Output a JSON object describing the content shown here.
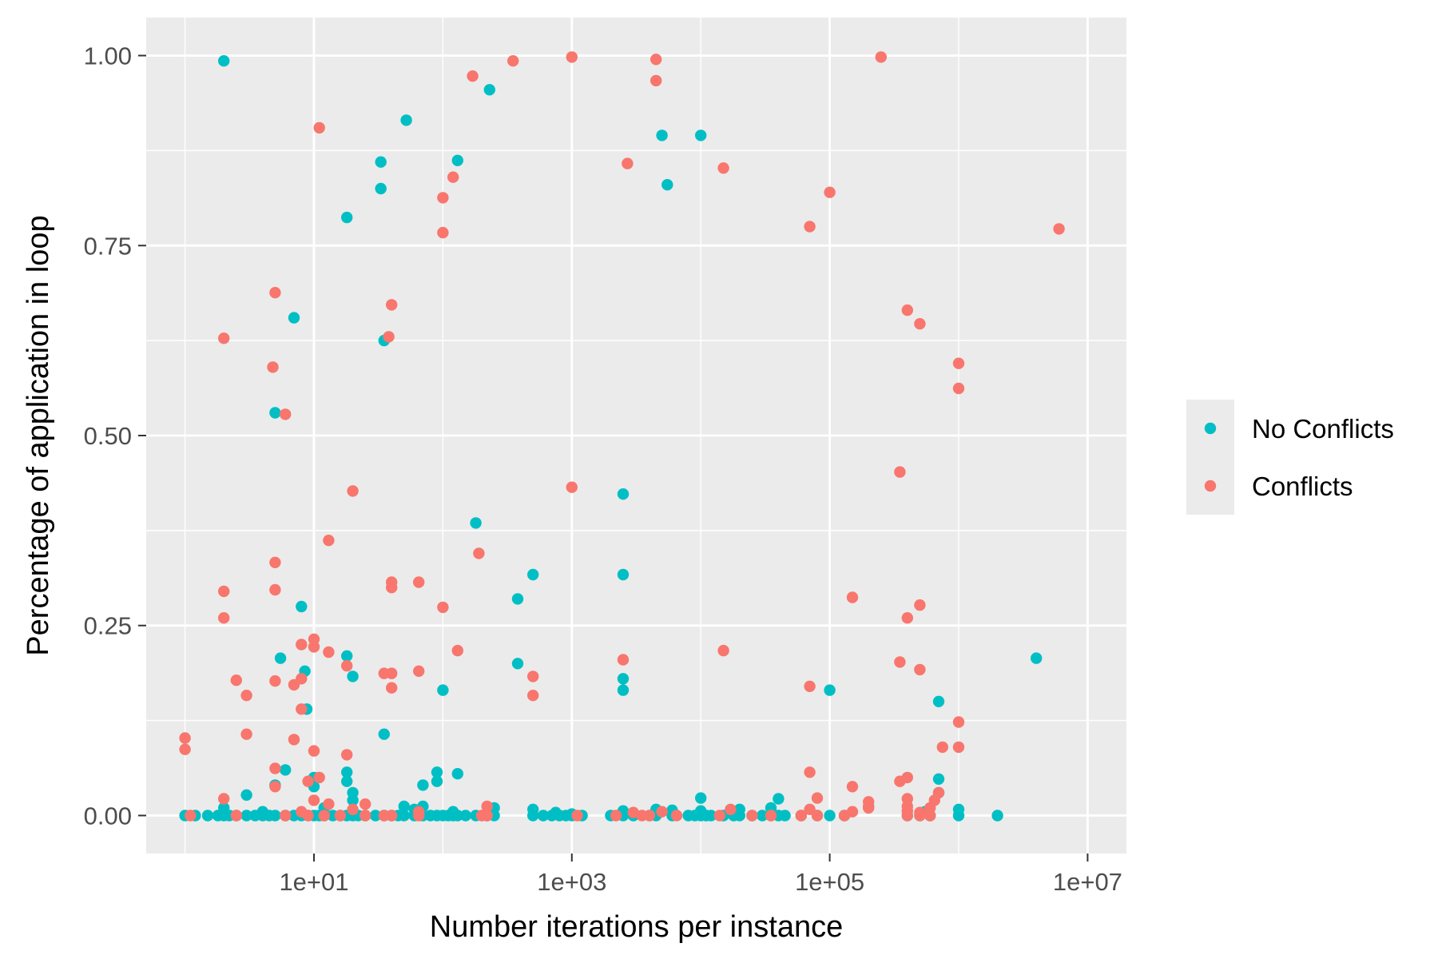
{
  "chart_data": {
    "type": "scatter",
    "title": "",
    "xlabel": "Number iterations per instance",
    "ylabel": "Percentage of application in loop",
    "x_scale": "log10",
    "xlim": [
      0.5,
      20000000
    ],
    "ylim": [
      -0.05,
      1.05
    ],
    "x_ticks": [
      10,
      1000,
      100000,
      10000000
    ],
    "x_tick_labels": [
      "1e+01",
      "1e+03",
      "1e+05",
      "1e+07"
    ],
    "y_ticks": [
      0,
      0.25,
      0.5,
      0.75,
      1.0
    ],
    "y_tick_labels": [
      "0.00",
      "0.25",
      "0.50",
      "0.75",
      "1.00"
    ],
    "grid": true,
    "legend_position": "right",
    "series": [
      {
        "name": "No Conflicts",
        "color": "#00bfc4",
        "points": [
          [
            2,
            0.993
          ],
          [
            5,
            0.53
          ],
          [
            7,
            0.655
          ],
          [
            8,
            0.275
          ],
          [
            18,
            0.787
          ],
          [
            33,
            0.86
          ],
          [
            33,
            0.825
          ],
          [
            35,
            0.625
          ],
          [
            52,
            0.915
          ],
          [
            130,
            0.862
          ],
          [
            230,
            0.955
          ],
          [
            5000,
            0.895
          ],
          [
            5500,
            0.83
          ],
          [
            10000,
            0.895
          ],
          [
            5.5,
            0.207
          ],
          [
            8.5,
            0.19
          ],
          [
            8.8,
            0.14
          ],
          [
            18,
            0.21
          ],
          [
            20,
            0.183
          ],
          [
            35,
            0.107
          ],
          [
            2500,
            0.423
          ],
          [
            2500,
            0.317
          ],
          [
            180,
            0.385
          ],
          [
            380,
            0.285
          ],
          [
            500,
            0.317
          ],
          [
            380,
            0.2
          ],
          [
            2500,
            0.18
          ],
          [
            2500,
            0.165
          ],
          [
            100,
            0.165
          ],
          [
            100000,
            0.165
          ],
          [
            700000,
            0.15
          ],
          [
            4000000,
            0.207
          ],
          [
            5,
            0.04
          ],
          [
            6,
            0.06
          ],
          [
            10,
            0.05
          ],
          [
            10,
            0.038
          ],
          [
            18,
            0.057
          ],
          [
            18,
            0.045
          ],
          [
            20,
            0.03
          ],
          [
            3,
            0.027
          ],
          [
            70,
            0.04
          ],
          [
            90,
            0.057
          ],
          [
            90,
            0.045
          ],
          [
            130,
            0.055
          ],
          [
            700000,
            0.048
          ],
          [
            700000,
            0.03
          ],
          [
            10000,
            0.023
          ],
          [
            40000,
            0.022
          ],
          [
            1,
            0
          ],
          [
            1.2,
            0
          ],
          [
            1.5,
            0
          ],
          [
            1.8,
            0
          ],
          [
            2,
            0
          ],
          [
            2.2,
            0
          ],
          [
            2.5,
            0
          ],
          [
            3,
            0
          ],
          [
            3.5,
            0
          ],
          [
            4,
            0
          ],
          [
            4.5,
            0
          ],
          [
            5,
            0
          ],
          [
            6,
            0
          ],
          [
            7,
            0
          ],
          [
            8,
            0
          ],
          [
            9,
            0
          ],
          [
            10,
            0
          ],
          [
            11,
            0
          ],
          [
            12,
            0
          ],
          [
            14,
            0
          ],
          [
            16,
            0
          ],
          [
            18,
            0
          ],
          [
            20,
            0
          ],
          [
            22,
            0
          ],
          [
            25,
            0
          ],
          [
            30,
            0
          ],
          [
            35,
            0
          ],
          [
            40,
            0
          ],
          [
            45,
            0
          ],
          [
            50,
            0
          ],
          [
            60,
            0
          ],
          [
            70,
            0
          ],
          [
            80,
            0
          ],
          [
            90,
            0
          ],
          [
            100,
            0
          ],
          [
            110,
            0
          ],
          [
            120,
            0
          ],
          [
            130,
            0
          ],
          [
            150,
            0
          ],
          [
            180,
            0
          ],
          [
            220,
            0
          ],
          [
            250,
            0
          ],
          [
            500,
            0
          ],
          [
            600,
            0
          ],
          [
            700,
            0
          ],
          [
            800,
            0
          ],
          [
            900,
            0
          ],
          [
            1000,
            0
          ],
          [
            1200,
            0
          ],
          [
            2000,
            0
          ],
          [
            2500,
            0
          ],
          [
            3000,
            0
          ],
          [
            4000,
            0
          ],
          [
            4500,
            0
          ],
          [
            6000,
            0
          ],
          [
            8000,
            0
          ],
          [
            9000,
            0
          ],
          [
            10000,
            0
          ],
          [
            11000,
            0
          ],
          [
            12000,
            0
          ],
          [
            15000,
            0
          ],
          [
            18000,
            0
          ],
          [
            20000,
            0
          ],
          [
            25000,
            0
          ],
          [
            30000,
            0
          ],
          [
            35000,
            0
          ],
          [
            40000,
            0
          ],
          [
            45000,
            0
          ],
          [
            60000,
            0
          ],
          [
            80000,
            0
          ],
          [
            100000,
            0
          ],
          [
            130000,
            0
          ],
          [
            400000,
            0
          ],
          [
            500000,
            0
          ],
          [
            600000,
            0
          ],
          [
            1000000,
            0
          ],
          [
            2000000,
            0
          ],
          [
            2,
            0.01
          ],
          [
            4,
            0.005
          ],
          [
            12,
            0.01
          ],
          [
            20,
            0.02
          ],
          [
            50,
            0.012
          ],
          [
            60,
            0.008
          ],
          [
            70,
            0.012
          ],
          [
            120,
            0.005
          ],
          [
            250,
            0.01
          ],
          [
            500,
            0.008
          ],
          [
            750,
            0.004
          ],
          [
            1000,
            0.002
          ],
          [
            2500,
            0.006
          ],
          [
            4500,
            0.008
          ],
          [
            6000,
            0.007
          ],
          [
            10000,
            0.006
          ],
          [
            20000,
            0.008
          ],
          [
            35000,
            0.01
          ],
          [
            1000000,
            0.008
          ],
          [
            550000,
            0.005
          ]
        ]
      },
      {
        "name": "Conflicts",
        "color": "#f8766d",
        "points": [
          [
            170,
            0.973
          ],
          [
            350,
            0.993
          ],
          [
            1000,
            0.998
          ],
          [
            4500,
            0.995
          ],
          [
            4500,
            0.967
          ],
          [
            250000,
            0.998
          ],
          [
            11,
            0.905
          ],
          [
            100,
            0.813
          ],
          [
            120,
            0.84
          ],
          [
            100,
            0.767
          ],
          [
            2700,
            0.858
          ],
          [
            15000,
            0.852
          ],
          [
            100000,
            0.82
          ],
          [
            70000,
            0.775
          ],
          [
            6000000,
            0.772
          ],
          [
            2,
            0.628
          ],
          [
            5,
            0.688
          ],
          [
            4.8,
            0.59
          ],
          [
            40,
            0.672
          ],
          [
            38,
            0.63
          ],
          [
            6,
            0.528
          ],
          [
            400000,
            0.665
          ],
          [
            500000,
            0.647
          ],
          [
            1000000,
            0.595
          ],
          [
            1000000,
            0.562
          ],
          [
            350000,
            0.452
          ],
          [
            20,
            0.427
          ],
          [
            1000,
            0.432
          ],
          [
            13,
            0.362
          ],
          [
            190,
            0.345
          ],
          [
            5,
            0.333
          ],
          [
            5,
            0.297
          ],
          [
            2,
            0.295
          ],
          [
            2,
            0.26
          ],
          [
            40,
            0.307
          ],
          [
            40,
            0.3
          ],
          [
            65,
            0.307
          ],
          [
            100,
            0.274
          ],
          [
            150000,
            0.287
          ],
          [
            500000,
            0.277
          ],
          [
            400000,
            0.26
          ],
          [
            10,
            0.232
          ],
          [
            10,
            0.222
          ],
          [
            8,
            0.225
          ],
          [
            13,
            0.215
          ],
          [
            130,
            0.217
          ],
          [
            15000,
            0.217
          ],
          [
            2500,
            0.205
          ],
          [
            18,
            0.197
          ],
          [
            35,
            0.187
          ],
          [
            40,
            0.187
          ],
          [
            65,
            0.19
          ],
          [
            500,
            0.183
          ],
          [
            350000,
            0.202
          ],
          [
            500000,
            0.192
          ],
          [
            2.5,
            0.178
          ],
          [
            3,
            0.158
          ],
          [
            5,
            0.177
          ],
          [
            7,
            0.172
          ],
          [
            8,
            0.18
          ],
          [
            40,
            0.168
          ],
          [
            500,
            0.158
          ],
          [
            70000,
            0.17
          ],
          [
            8,
            0.14
          ],
          [
            1,
            0.102
          ],
          [
            1,
            0.087
          ],
          [
            3,
            0.107
          ],
          [
            7,
            0.1
          ],
          [
            10,
            0.085
          ],
          [
            18,
            0.08
          ],
          [
            1000000,
            0.123
          ],
          [
            1000000,
            0.09
          ],
          [
            750000,
            0.09
          ],
          [
            5,
            0.062
          ],
          [
            5,
            0.038
          ],
          [
            9,
            0.045
          ],
          [
            11,
            0.05
          ],
          [
            10,
            0.02
          ],
          [
            13,
            0.015
          ],
          [
            2,
            0.022
          ],
          [
            25,
            0.015
          ],
          [
            70000,
            0.057
          ],
          [
            80000,
            0.023
          ],
          [
            150000,
            0.038
          ],
          [
            200000,
            0.018
          ],
          [
            200000,
            0.01
          ],
          [
            350000,
            0.045
          ],
          [
            400000,
            0.05
          ],
          [
            400000,
            0.022
          ],
          [
            400000,
            0.012
          ],
          [
            650000,
            0.02
          ],
          [
            700000,
            0.03
          ],
          [
            600000,
            0.01
          ],
          [
            1.1,
            0
          ],
          [
            2.5,
            0
          ],
          [
            6,
            0
          ],
          [
            9,
            0
          ],
          [
            12,
            0
          ],
          [
            16,
            0
          ],
          [
            25,
            0
          ],
          [
            35,
            0
          ],
          [
            40,
            0
          ],
          [
            65,
            0
          ],
          [
            200,
            0
          ],
          [
            220,
            0
          ],
          [
            1100,
            0
          ],
          [
            2200,
            0
          ],
          [
            3500,
            0
          ],
          [
            4000,
            0
          ],
          [
            6500,
            0
          ],
          [
            14000,
            0
          ],
          [
            25000,
            0
          ],
          [
            35000,
            0
          ],
          [
            60000,
            0
          ],
          [
            80000,
            0
          ],
          [
            130000,
            0
          ],
          [
            400000,
            0
          ],
          [
            500000,
            0
          ],
          [
            600000,
            0
          ],
          [
            8,
            0.005
          ],
          [
            20,
            0.008
          ],
          [
            65,
            0.005
          ],
          [
            220,
            0.012
          ],
          [
            3000,
            0.004
          ],
          [
            5000,
            0.005
          ],
          [
            17000,
            0.008
          ],
          [
            70000,
            0.008
          ],
          [
            150000,
            0.005
          ],
          [
            200000,
            0.012
          ],
          [
            400000,
            0.006
          ],
          [
            500000,
            0.004
          ]
        ]
      }
    ]
  }
}
